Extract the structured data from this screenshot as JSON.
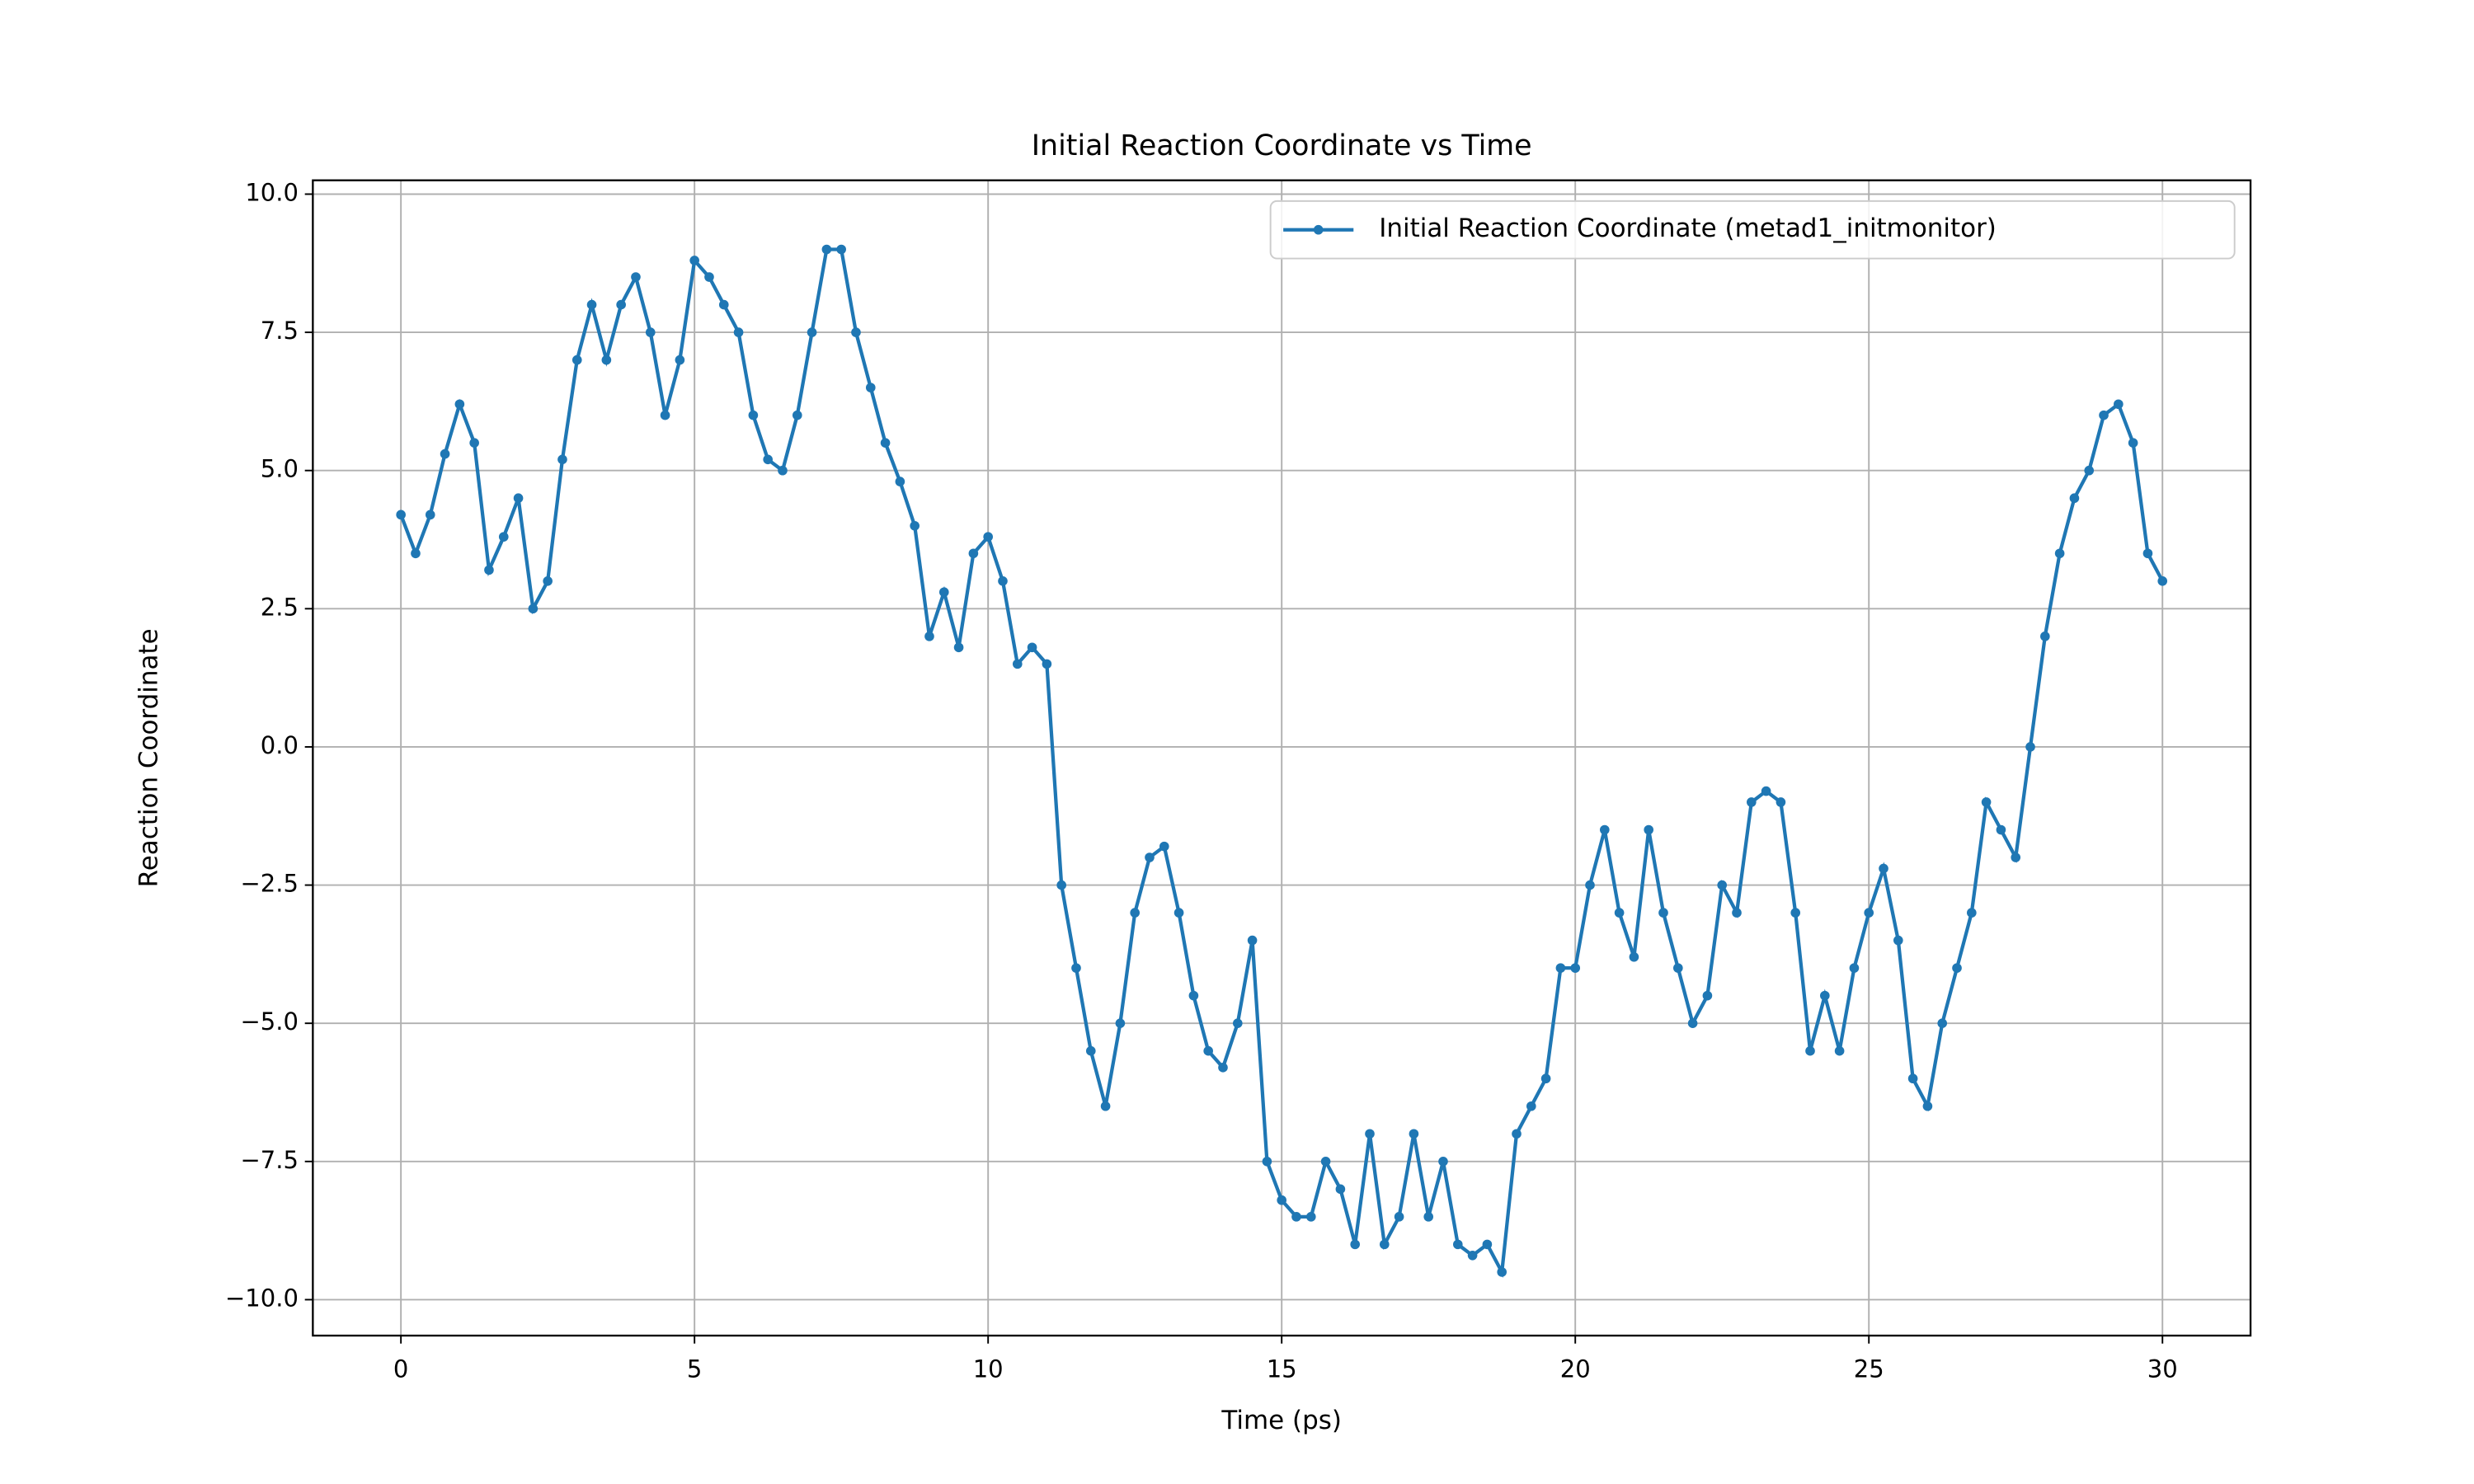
{
  "chart_data": {
    "type": "line",
    "title": "Initial Reaction Coordinate vs Time",
    "xlabel": "Time (ps)",
    "ylabel": "Reaction Coordinate",
    "x": [
      0,
      0.25,
      0.5,
      0.75,
      1,
      1.25,
      1.5,
      1.75,
      2,
      2.25,
      2.5,
      2.75,
      3,
      3.25,
      3.5,
      3.75,
      4,
      4.25,
      4.5,
      4.75,
      5,
      5.25,
      5.5,
      5.75,
      6,
      6.25,
      6.5,
      6.75,
      7,
      7.25,
      7.5,
      7.75,
      8,
      8.25,
      8.5,
      8.75,
      9,
      9.25,
      9.5,
      9.75,
      10,
      10.25,
      10.5,
      10.75,
      11,
      11.25,
      11.5,
      11.75,
      12,
      12.25,
      12.5,
      12.75,
      13,
      13.25,
      13.5,
      13.75,
      14,
      14.25,
      14.5,
      14.75,
      15,
      15.25,
      15.5,
      15.75,
      16,
      16.25,
      16.5,
      16.75,
      17,
      17.25,
      17.5,
      17.75,
      18,
      18.25,
      18.5,
      18.75,
      19,
      19.25,
      19.5,
      19.75,
      20,
      20.25,
      20.5,
      20.75,
      21,
      21.25,
      21.5,
      21.75,
      22,
      22.25,
      22.5,
      22.75,
      23,
      23.25,
      23.5,
      23.75,
      24,
      24.25,
      24.5,
      24.75,
      25,
      25.25,
      25.5,
      25.75,
      26,
      26.25,
      26.5,
      26.75,
      27,
      27.25,
      27.5,
      27.75,
      28,
      28.25,
      28.5,
      28.75,
      29,
      29.25,
      29.5,
      29.75,
      30
    ],
    "series": [
      {
        "name": "Initial Reaction Coordinate (metad1_initmonitor)",
        "color": "#1f77b4",
        "values": [
          4.2,
          3.5,
          4.2,
          5.3,
          6.2,
          5.5,
          3.2,
          3.8,
          4.5,
          2.5,
          3.0,
          5.2,
          7.0,
          8.0,
          7.0,
          8.0,
          8.5,
          7.5,
          6.0,
          7.0,
          8.8,
          8.5,
          8.0,
          7.5,
          6.0,
          5.2,
          5.0,
          6.0,
          7.5,
          9.0,
          9.0,
          7.5,
          6.5,
          5.5,
          4.8,
          4.0,
          2.0,
          2.8,
          1.8,
          3.5,
          3.8,
          3.0,
          1.5,
          1.8,
          1.5,
          -2.5,
          -4.0,
          -5.5,
          -6.5,
          -5.0,
          -3.0,
          -2.0,
          -1.8,
          -3.0,
          -4.5,
          -5.5,
          -5.8,
          -5.0,
          -3.5,
          -7.5,
          -8.2,
          -8.5,
          -8.5,
          -7.5,
          -8.0,
          -9.0,
          -7.0,
          -9.0,
          -8.5,
          -7.0,
          -8.5,
          -7.5,
          -9.0,
          -9.2,
          -9.0,
          -9.5,
          -7.0,
          -6.5,
          -6.0,
          -4.0,
          -4.0,
          -2.5,
          -1.5,
          -3.0,
          -3.8,
          -1.5,
          -3.0,
          -4.0,
          -5.0,
          -4.5,
          -2.5,
          -3.0,
          -1.0,
          -0.8,
          -1.0,
          -3.0,
          -5.5,
          -4.5,
          -5.5,
          -4.0,
          -3.0,
          -2.2,
          -3.5,
          -6.0,
          -6.5,
          -5.0,
          -4.0,
          -3.0,
          -1.0,
          -1.5,
          -2.0,
          0.0,
          2.0,
          3.5,
          4.5,
          5.0,
          6.0,
          6.2,
          5.5,
          3.5,
          3.0
        ]
      }
    ],
    "xlim": [
      -1.5,
      31.5
    ],
    "ylim": [
      -10.65,
      10.25
    ],
    "xticks": [
      0,
      5,
      10,
      15,
      20,
      25,
      30
    ],
    "yticks": [
      {
        "value": 10,
        "label": "10.0"
      },
      7.5,
      {
        "value": 5,
        "label": "5.0"
      },
      2.5,
      {
        "value": 0,
        "label": "0.0"
      },
      {
        "value": -2.5,
        "label": "−2.5"
      },
      {
        "value": -5,
        "label": "−5.0"
      },
      {
        "value": -7.5,
        "label": "−7.5"
      },
      {
        "value": -10,
        "label": "−10.0"
      }
    ],
    "grid": true,
    "legend": "upper right"
  }
}
